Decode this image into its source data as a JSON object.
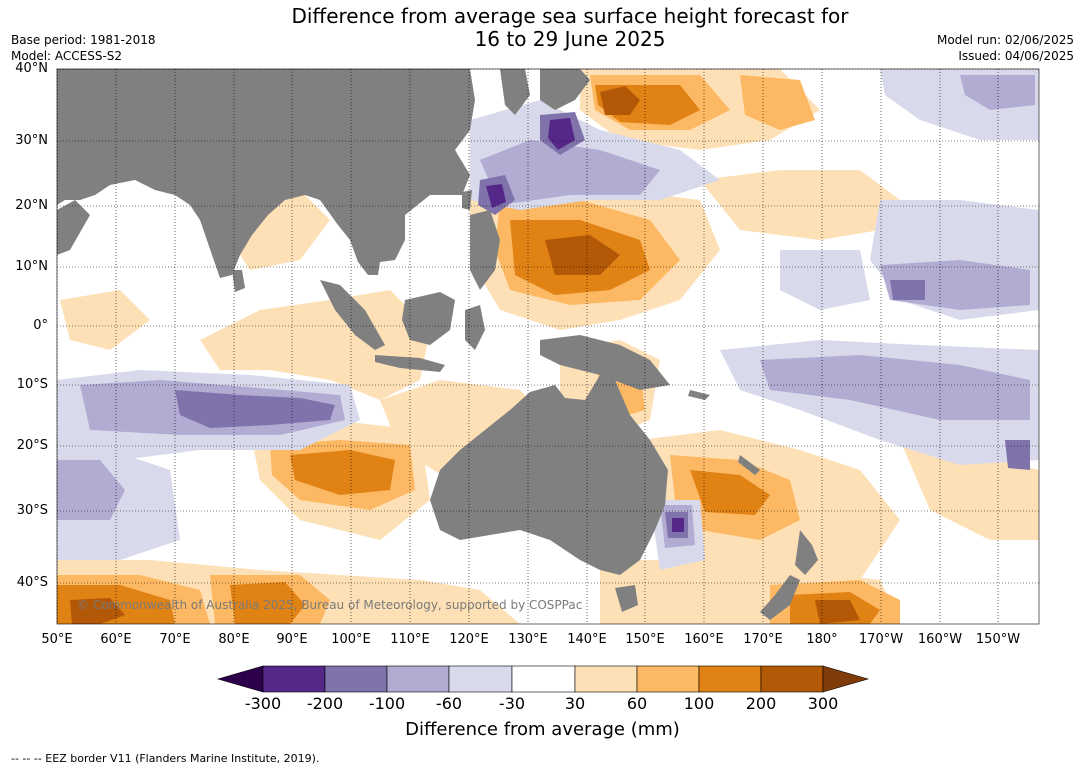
{
  "title": {
    "line1": "Difference from average sea surface height forecast for",
    "line2": "16 to 29 June 2025"
  },
  "meta": {
    "base_period": "Base period: 1981-2018",
    "model": "Model: ACCESS-S2",
    "model_run": "Model run: 02/06/2025",
    "issued": "Issued: 04/06/2025"
  },
  "map": {
    "extent": {
      "lon_min": 50,
      "lon_max": 215,
      "lat_min": -46,
      "lat_max": 40
    },
    "land_color": "#808080",
    "lat_labels": [
      "40°N",
      "30°N",
      "20°N",
      "10°N",
      "0°",
      "10°S",
      "20°S",
      "30°S",
      "40°S"
    ],
    "lon_labels": [
      "50°E",
      "60°E",
      "70°E",
      "80°E",
      "90°E",
      "100°E",
      "110°E",
      "120°E",
      "130°E",
      "140°E",
      "150°E",
      "160°E",
      "170°E",
      "180°",
      "170°W",
      "160°W",
      "150°W"
    ],
    "copyright": "© Commonwealth of Australia 2025, Bureau of Meteorology, supported by COSPPac"
  },
  "colorbar": {
    "tick_labels": [
      "-300",
      "-200",
      "-100",
      "-60",
      "-30",
      "30",
      "60",
      "100",
      "200",
      "300"
    ],
    "colors": [
      "#2d004b",
      "#542788",
      "#8073ac",
      "#b2abd2",
      "#d8daeb",
      "#ffffff",
      "#fee0b6",
      "#fdb863",
      "#e08214",
      "#b35806",
      "#7f3b08"
    ],
    "title": "Difference from average (mm)"
  },
  "footer": "-- -- -- EEZ border V11 (Flanders Marine Institute, 2019)."
}
